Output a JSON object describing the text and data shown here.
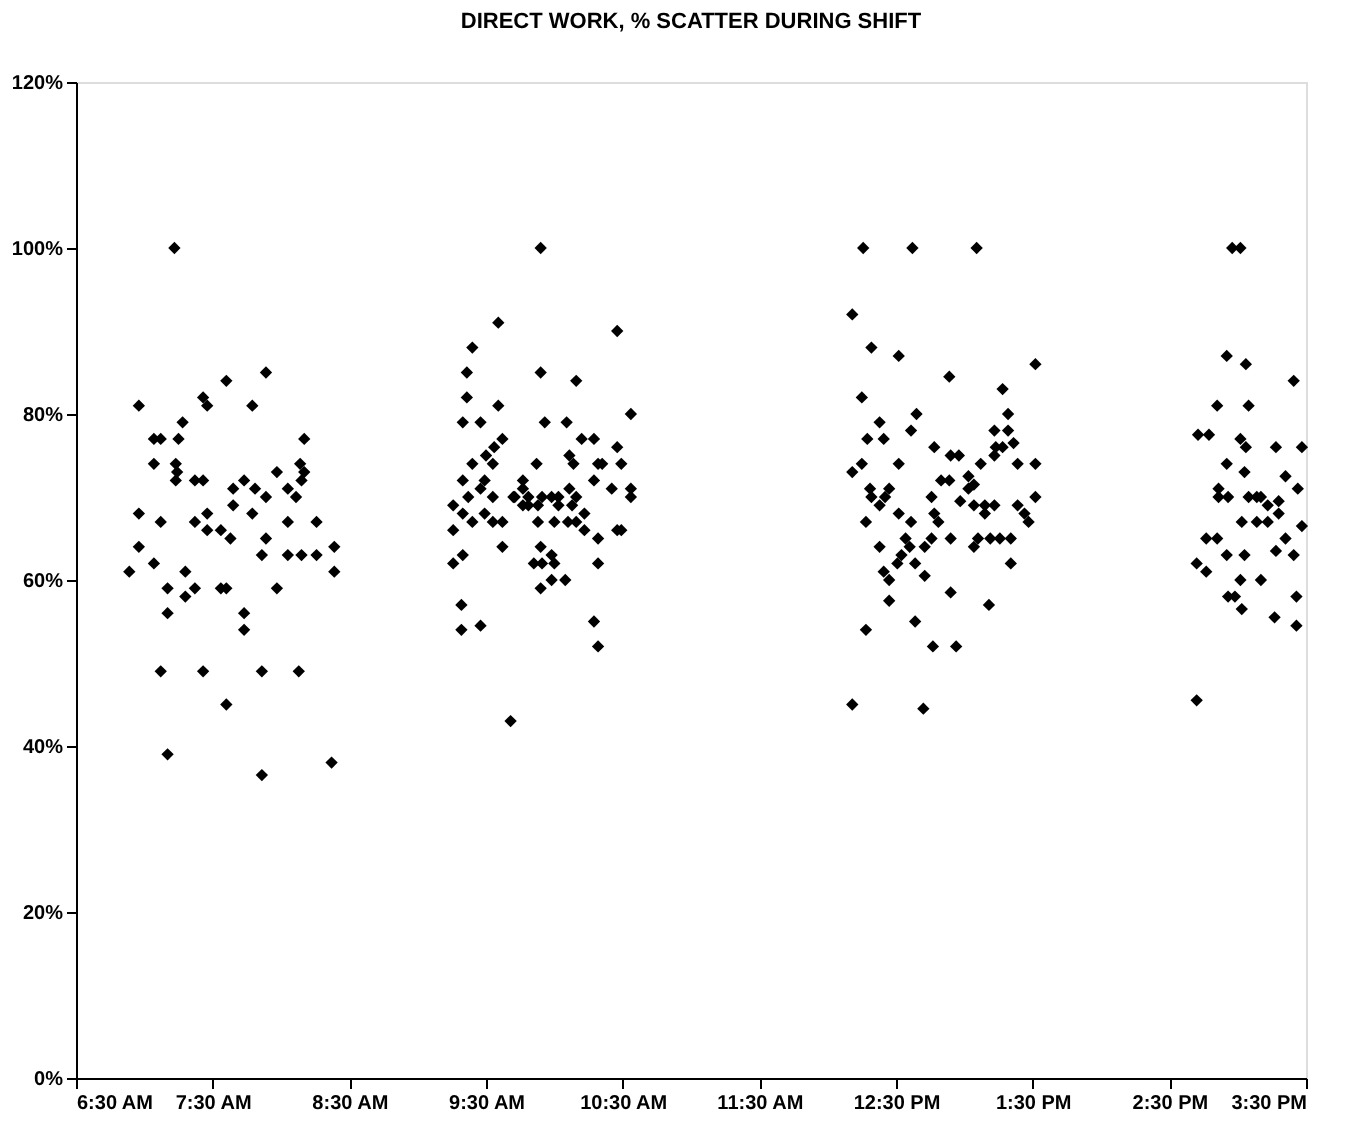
{
  "chart_data": {
    "type": "scatter",
    "title": "DIRECT WORK, % SCATTER DURING SHIFT",
    "x": [
      7.22,
      7.89,
      7.6,
      7.43,
      7.46,
      6.96,
      7.79,
      7.28,
      7.07,
      7.12,
      7.25,
      8.17,
      7.07,
      7.23,
      7.24,
      7.23,
      7.37,
      7.43,
      7.73,
      7.97,
      8.14,
      8.17,
      8.15,
      7.65,
      7.81,
      7.89,
      8.05,
      8.11,
      7.65,
      6.96,
      7.12,
      7.46,
      7.79,
      7.37,
      8.26,
      8.05,
      7.46,
      7.56,
      7.63,
      7.89,
      6.96,
      8.39,
      7.86,
      8.05,
      8.15,
      8.26,
      6.89,
      7.07,
      8.39,
      7.17,
      7.3,
      7.37,
      7.56,
      7.6,
      7.97,
      7.17,
      7.3,
      7.73,
      7.73,
      7.12,
      7.43,
      7.86,
      8.13,
      7.6,
      7.17,
      7.86,
      8.37,
      9.9,
      9.59,
      10.46,
      9.4,
      9.9,
      10.16,
      9.36,
      9.36,
      9.59,
      10.56,
      9.33,
      9.46,
      9.93,
      10.09,
      9.62,
      9.56,
      10.2,
      10.29,
      10.46,
      9.5,
      9.55,
      10.11,
      10.14,
      9.4,
      9.87,
      10.32,
      10.35,
      10.49,
      9.33,
      9.49,
      9.46,
      9.77,
      9.77,
      10.29,
      10.42,
      10.56,
      10.56,
      10.11,
      10.16,
      9.26,
      9.33,
      9.37,
      9.55,
      9.7,
      9.71,
      9.81,
      9.81,
      9.91,
      9.98,
      10.03,
      9.88,
      9.77,
      10.03,
      10.13,
      9.4,
      9.49,
      9.55,
      9.62,
      9.88,
      10.0,
      10.1,
      10.16,
      10.22,
      10.22,
      10.32,
      10.46,
      10.49,
      9.26,
      9.62,
      9.9,
      9.33,
      9.26,
      9.98,
      10.0,
      9.85,
      9.91,
      10.32,
      9.98,
      10.08,
      9.9,
      9.32,
      9.32,
      9.46,
      10.29,
      10.32,
      9.68,
      12.26,
      12.62,
      13.09,
      12.18,
      12.32,
      12.52,
      12.89,
      13.52,
      12.25,
      13.28,
      12.65,
      12.61,
      13.32,
      13.32,
      13.22,
      12.38,
      12.41,
      12.29,
      13.23,
      13.36,
      13.28,
      13.22,
      12.78,
      12.9,
      12.96,
      12.25,
      12.18,
      12.52,
      13.12,
      13.39,
      13.52,
      12.31,
      12.45,
      12.32,
      12.38,
      12.42,
      12.83,
      12.89,
      13.03,
      13.07,
      13.03,
      13.52,
      12.76,
      12.97,
      13.07,
      13.15,
      13.22,
      13.39,
      13.44,
      12.52,
      12.61,
      12.78,
      12.81,
      13.15,
      12.28,
      13.47,
      12.57,
      12.76,
      12.9,
      13.1,
      13.19,
      13.26,
      13.34,
      12.38,
      12.71,
      12.54,
      12.6,
      12.51,
      13.07,
      12.41,
      12.45,
      12.64,
      12.71,
      13.34,
      12.9,
      12.45,
      13.18,
      12.28,
      12.64,
      12.77,
      12.94,
      12.18,
      12.7,
      14.96,
      15.02,
      14.92,
      15.06,
      15.41,
      14.85,
      15.08,
      14.71,
      14.79,
      15.02,
      15.06,
      15.28,
      15.47,
      14.92,
      15.05,
      15.35,
      14.86,
      14.86,
      14.93,
      15.08,
      15.14,
      15.17,
      15.22,
      15.3,
      15.44,
      15.03,
      15.14,
      15.22,
      15.3,
      15.47,
      14.77,
      14.85,
      15.35,
      14.92,
      15.05,
      15.28,
      15.41,
      14.7,
      14.77,
      15.02,
      15.17,
      14.93,
      14.98,
      15.43,
      15.03,
      15.27,
      15.43,
      14.7
    ],
    "values": [
      100,
      85,
      84,
      82,
      81,
      81,
      81,
      79,
      77,
      77,
      77,
      77,
      74,
      74,
      73,
      72,
      72,
      72,
      72,
      73,
      74,
      73,
      72,
      71,
      71,
      70,
      71,
      70,
      69,
      68,
      67,
      68,
      68,
      67,
      67,
      67,
      66,
      66,
      65,
      65,
      64,
      64,
      63,
      63,
      63,
      63,
      61,
      62,
      61,
      59,
      61,
      59,
      59,
      59,
      59,
      56,
      58,
      56,
      54,
      49,
      49,
      49,
      49,
      45,
      39,
      36.5,
      38,
      100,
      91,
      90,
      88,
      85,
      84,
      85,
      82,
      81,
      80,
      79,
      79,
      79,
      79,
      77,
      76,
      77,
      77,
      76,
      75,
      74,
      75,
      74,
      74,
      74,
      74,
      74,
      74,
      72,
      72,
      71,
      72,
      71,
      72,
      71,
      71,
      70,
      71,
      70,
      69,
      68,
      70,
      70,
      70,
      70,
      70,
      69,
      70,
      70,
      70,
      69,
      69,
      69,
      69,
      67,
      68,
      67,
      67,
      67,
      67,
      67,
      67,
      68,
      66,
      65,
      66,
      66,
      66,
      64,
      64,
      63,
      62,
      63,
      62,
      62,
      62,
      62,
      60,
      60,
      59,
      57,
      54,
      54.5,
      55,
      52,
      43,
      100,
      100,
      100,
      92,
      88,
      87,
      84.5,
      86,
      82,
      83,
      80,
      78,
      80,
      78,
      78,
      79,
      77,
      77,
      76,
      76.5,
      76,
      75,
      76,
      75,
      75,
      74,
      73,
      74,
      74,
      74,
      74,
      71,
      71,
      70,
      69,
      70,
      72,
      72,
      72.5,
      71.5,
      71,
      70,
      70,
      69.5,
      69,
      69,
      69,
      69,
      68,
      68,
      67,
      68,
      67,
      68,
      67,
      67,
      65,
      65,
      65,
      65,
      65,
      65,
      65,
      64,
      64,
      63,
      64,
      62,
      64,
      61,
      60,
      62,
      60.5,
      62,
      58.5,
      57.5,
      57,
      54,
      55,
      52,
      52,
      45,
      44.5,
      100,
      100,
      87,
      86,
      84,
      81,
      81,
      77.5,
      77.5,
      77,
      76,
      76,
      76,
      74,
      73,
      72.5,
      71,
      70,
      70,
      70,
      70,
      70,
      69,
      69.5,
      71,
      67,
      67,
      67,
      68,
      66.5,
      65,
      65,
      65,
      63,
      63,
      63.5,
      63,
      62,
      61,
      60,
      60,
      58,
      58,
      58,
      56.5,
      55.5,
      54.5,
      45.5
    ],
    "color": "#000000",
    "marker": "diamond",
    "xlim": [
      6.5,
      15.5
    ],
    "xticks": [
      {
        "value": 6.5,
        "label": "6:30 AM"
      },
      {
        "value": 7.5,
        "label": "7:30 AM"
      },
      {
        "value": 8.5,
        "label": "8:30 AM"
      },
      {
        "value": 9.5,
        "label": "9:30 AM"
      },
      {
        "value": 10.5,
        "label": "10:30 AM"
      },
      {
        "value": 11.5,
        "label": "11:30 AM"
      },
      {
        "value": 12.5,
        "label": "12:30 PM"
      },
      {
        "value": 13.5,
        "label": "1:30 PM"
      },
      {
        "value": 14.5,
        "label": "2:30 PM"
      },
      {
        "value": 15.5,
        "label": "3:30 PM"
      }
    ],
    "ylim": [
      0,
      120
    ],
    "yticks": [
      {
        "value": 0,
        "label": "0%"
      },
      {
        "value": 20,
        "label": "20%"
      },
      {
        "value": 40,
        "label": "40%"
      },
      {
        "value": 60,
        "label": "60%"
      },
      {
        "value": 80,
        "label": "80%"
      },
      {
        "value": 100,
        "label": "100%"
      },
      {
        "value": 120,
        "label": "120%"
      }
    ],
    "grid": false
  }
}
